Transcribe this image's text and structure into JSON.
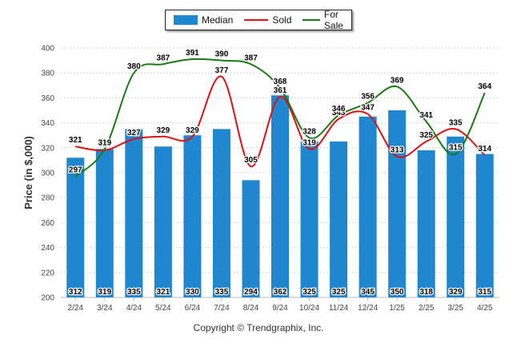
{
  "chart_data": {
    "type": "bar",
    "ylabel": "Price (in $,000)",
    "ylim": [
      200,
      400
    ],
    "yticks": [
      200,
      220,
      240,
      260,
      280,
      300,
      320,
      340,
      360,
      380,
      400
    ],
    "grid": true,
    "legend_placement": "top-center",
    "categories": [
      "2/24",
      "3/24",
      "4/24",
      "5/24",
      "6/24",
      "7/24",
      "8/24",
      "9/24",
      "10/24",
      "11/24",
      "12/24",
      "1/25",
      "2/25",
      "3/25",
      "4/25"
    ],
    "series": [
      {
        "name": "Median",
        "kind": "bar",
        "color": "#1f87d0",
        "values": [
          312,
          319,
          335,
          321,
          330,
          335,
          294,
          362,
          325,
          325,
          345,
          350,
          318,
          329,
          315
        ]
      },
      {
        "name": "Sold",
        "kind": "line",
        "color": "#e01010",
        "values": [
          321,
          318,
          327,
          329,
          329,
          377,
          305,
          361,
          319,
          343,
          347,
          313,
          325,
          335,
          314
        ]
      },
      {
        "name": "For Sale",
        "kind": "line",
        "color": "#1a7a12",
        "values": [
          297,
          319,
          380,
          387,
          391,
          390,
          387,
          368,
          328,
          346,
          356,
          369,
          341,
          315,
          364
        ]
      }
    ]
  },
  "credit": "Copyright © Trendgraphix, Inc."
}
